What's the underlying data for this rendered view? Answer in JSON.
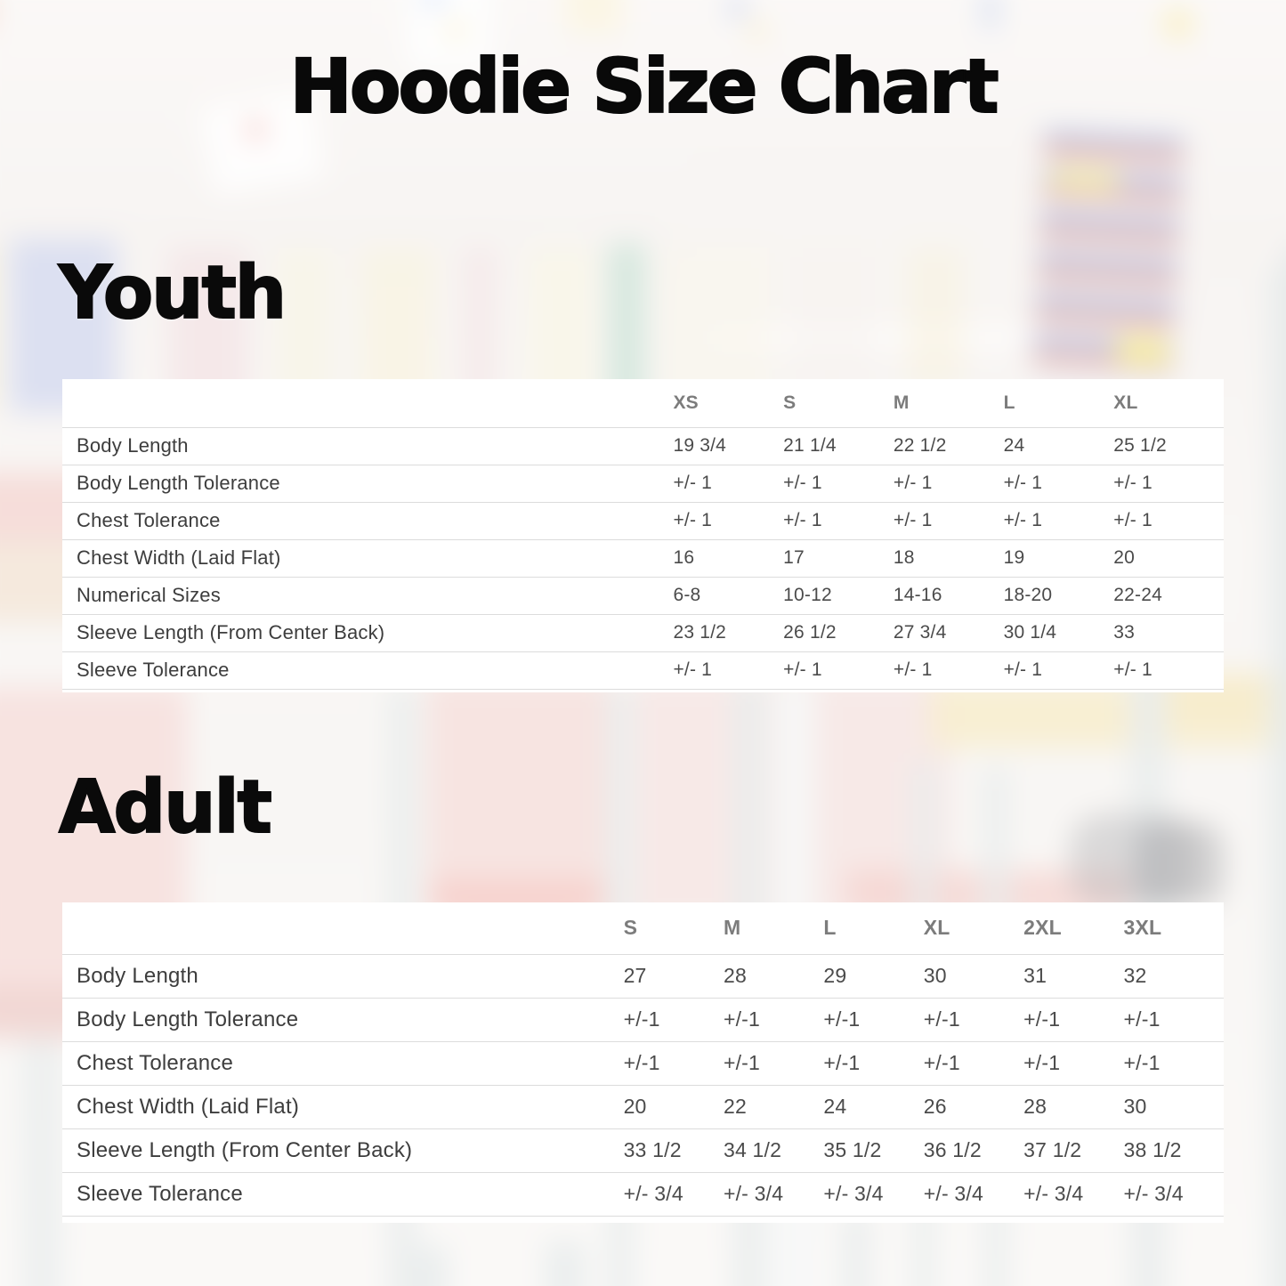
{
  "title": "Hoodie Size Chart",
  "chart_data": [
    {
      "type": "table",
      "section_heading": "Youth",
      "size_columns": [
        "XS",
        "S",
        "M",
        "L",
        "XL"
      ],
      "rows": [
        {
          "label": "Body Length",
          "values": [
            "19 3/4",
            "21 1/4",
            "22 1/2",
            "24",
            "25 1/2"
          ]
        },
        {
          "label": "Body Length Tolerance",
          "values": [
            "+/- 1",
            "+/- 1",
            "+/- 1",
            "+/- 1",
            "+/- 1"
          ]
        },
        {
          "label": "Chest Tolerance",
          "values": [
            "+/- 1",
            "+/- 1",
            "+/- 1",
            "+/- 1",
            "+/- 1"
          ]
        },
        {
          "label": "Chest Width (Laid Flat)",
          "values": [
            "16",
            "17",
            "18",
            "19",
            "20"
          ]
        },
        {
          "label": "Numerical Sizes",
          "values": [
            "6-8",
            "10-12",
            "14-16",
            "18-20",
            "22-24"
          ]
        },
        {
          "label": "Sleeve Length (From Center Back)",
          "values": [
            "23 1/2",
            "26 1/2",
            "27 3/4",
            "30 1/4",
            "33"
          ]
        },
        {
          "label": "Sleeve Tolerance",
          "values": [
            "+/- 1",
            "+/- 1",
            "+/- 1",
            "+/- 1",
            "+/- 1"
          ]
        }
      ]
    },
    {
      "type": "table",
      "section_heading": "Adult",
      "size_columns": [
        "S",
        "M",
        "L",
        "XL",
        "2XL",
        "3XL"
      ],
      "rows": [
        {
          "label": "Body Length",
          "values": [
            "27",
            "28",
            "29",
            "30",
            "31",
            "32"
          ]
        },
        {
          "label": "Body Length Tolerance",
          "values": [
            "+/-1",
            "+/-1",
            "+/-1",
            "+/-1",
            "+/-1",
            "+/-1"
          ]
        },
        {
          "label": "Chest Tolerance",
          "values": [
            "+/-1",
            "+/-1",
            "+/-1",
            "+/-1",
            "+/-1",
            "+/-1"
          ]
        },
        {
          "label": "Chest Width (Laid Flat)",
          "values": [
            "20",
            "22",
            "24",
            "26",
            "28",
            "30"
          ]
        },
        {
          "label": "Sleeve Length (From Center Back)",
          "values": [
            "33 1/2",
            "34 1/2",
            "35 1/2",
            "36 1/2",
            "37 1/2",
            "38 1/2"
          ]
        },
        {
          "label": "Sleeve Tolerance",
          "values": [
            "+/- 3/4",
            "+/- 3/4",
            "+/- 3/4",
            "+/- 3/4",
            "+/- 3/4",
            "+/- 3/4"
          ]
        }
      ]
    }
  ],
  "theme": {
    "heading_color": "#0a0a0a",
    "table_header_color": "#7c7c7c",
    "table_value_color": "#4b4b4b",
    "row_label_color": "#3d3d3d",
    "card_background": "#ffffff",
    "divider_color": "#dcdcdc"
  }
}
